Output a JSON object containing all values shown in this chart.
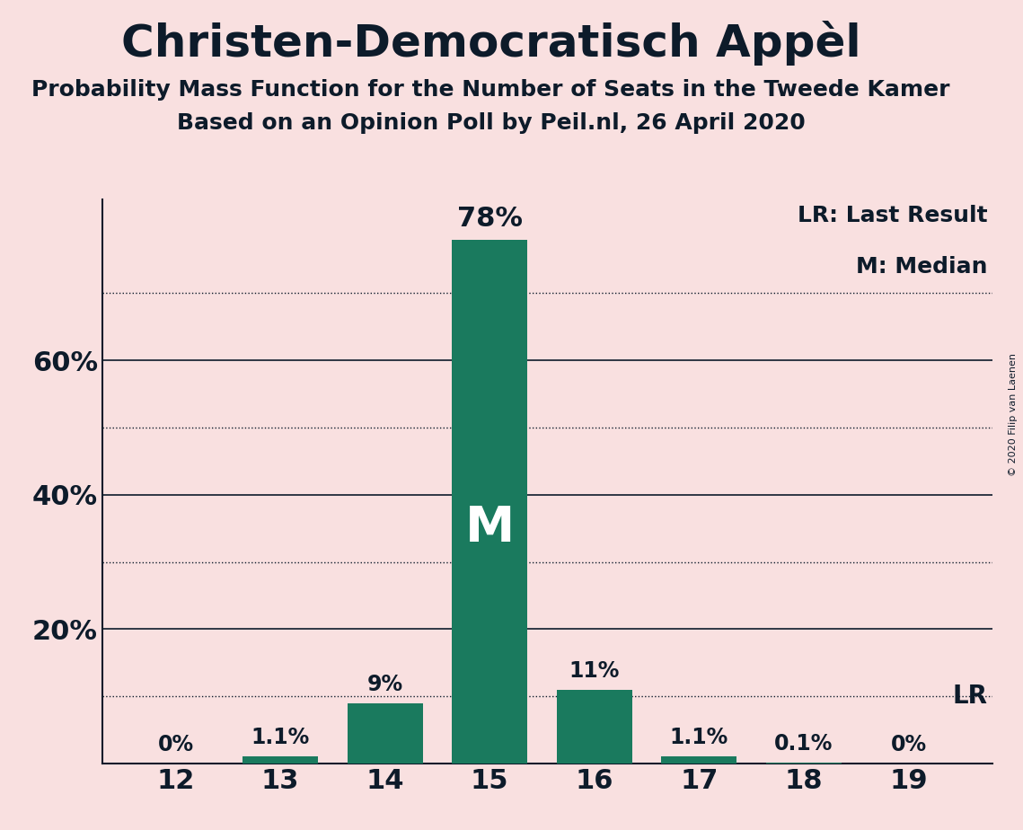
{
  "title": "Christen-Democratisch Appèl",
  "subtitle1": "Probability Mass Function for the Number of Seats in the Tweede Kamer",
  "subtitle2": "Based on an Opinion Poll by Peil.nl, 26 April 2020",
  "copyright": "© 2020 Filip van Laenen",
  "categories": [
    12,
    13,
    14,
    15,
    16,
    17,
    18,
    19
  ],
  "values": [
    0.0,
    1.1,
    9.0,
    78.0,
    11.0,
    1.1,
    0.1,
    0.0
  ],
  "bar_color": "#1a7a5e",
  "background_color": "#f9e0e0",
  "text_color": "#0d1b2a",
  "bar_labels": [
    "0%",
    "1.1%",
    "9%",
    "78%",
    "11%",
    "1.1%",
    "0.1%",
    "0%"
  ],
  "median_seat": 15,
  "lr_value": 10.0,
  "solid_gridlines": [
    20,
    40,
    60
  ],
  "dotted_gridlines": [
    10,
    30,
    50,
    70
  ],
  "legend_lr": "LR: Last Result",
  "legend_m": "M: Median",
  "bar_width": 0.72,
  "ylim": [
    0,
    84
  ],
  "xlim": [
    11.3,
    19.8
  ],
  "title_fontsize": 36,
  "subtitle_fontsize": 18,
  "tick_fontsize": 22,
  "label_fontsize": 17,
  "legend_fontsize": 18,
  "lr_fontsize": 20,
  "m_fontsize": 40
}
